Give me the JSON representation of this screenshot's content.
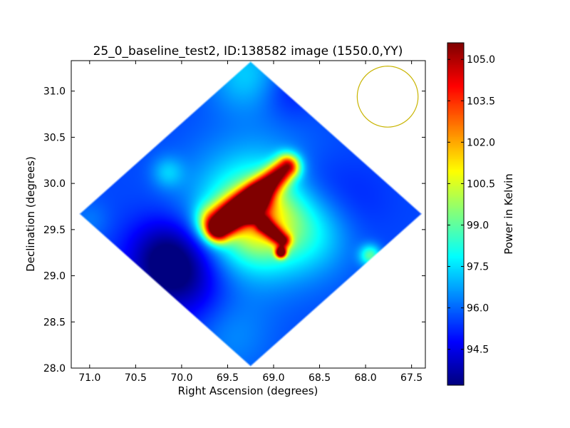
{
  "chart_data": {
    "type": "heatmap",
    "title": "25_0_baseline_test2, ID:138582 image (1550.0,YY)",
    "xlabel": "Right Ascension (degrees)",
    "ylabel": "Declination (degrees)",
    "colorbar_label": "Power in Kelvin",
    "colormap": "jet",
    "x_reversed": true,
    "xlim": [
      71.2,
      67.35
    ],
    "ylim": [
      28.0,
      31.33
    ],
    "xticks": [
      71.0,
      70.5,
      70.0,
      69.5,
      69.0,
      68.5,
      68.0,
      67.5
    ],
    "xtick_labels": [
      "71.0",
      "70.5",
      "70.0",
      "69.5",
      "69.0",
      "68.5",
      "68.0",
      "67.5"
    ],
    "yticks": [
      28.0,
      28.5,
      29.0,
      29.5,
      30.0,
      30.5,
      31.0
    ],
    "ytick_labels": [
      "28.0",
      "28.5",
      "29.0",
      "29.5",
      "30.0",
      "30.5",
      "31.0"
    ],
    "color_range": [
      93.2,
      105.6
    ],
    "colorbar_ticks": [
      94.5,
      96.0,
      97.5,
      99.0,
      100.5,
      102.0,
      103.5,
      105.0
    ],
    "colorbar_tick_labels": [
      "94.5",
      "96.0",
      "97.5",
      "99.0",
      "100.5",
      "102.0",
      "103.5",
      "105.0"
    ],
    "background_level": 95.6,
    "footprint": {
      "shape": "diamond",
      "center": [
        69.25,
        29.67
      ],
      "vertices": [
        [
          69.25,
          31.33
        ],
        [
          67.38,
          29.67
        ],
        [
          69.25,
          28.02
        ],
        [
          71.12,
          29.67
        ]
      ]
    },
    "features": [
      {
        "kind": "ridge",
        "from": [
          69.6,
          29.5
        ],
        "to": [
          68.85,
          30.18
        ],
        "width": 0.09,
        "peak": 104.3
      },
      {
        "kind": "ridge",
        "from": [
          69.65,
          29.6
        ],
        "to": [
          69.2,
          29.8
        ],
        "width": 0.12,
        "peak": 100.8
      },
      {
        "kind": "ridge",
        "from": [
          69.1,
          29.55
        ],
        "to": [
          68.9,
          29.38
        ],
        "width": 0.06,
        "peak": 102.5
      },
      {
        "kind": "spot",
        "center": [
          69.25,
          29.66
        ],
        "sigma": 0.05,
        "peak": 105.3
      },
      {
        "kind": "spot",
        "center": [
          68.92,
          29.25
        ],
        "sigma": 0.04,
        "peak": 105.4
      },
      {
        "kind": "spot",
        "center": [
          69.2,
          29.68
        ],
        "sigma": 0.5,
        "peak": 98.6
      },
      {
        "kind": "spot",
        "center": [
          69.15,
          29.6
        ],
        "sigma": 0.3,
        "peak": 98.9
      },
      {
        "kind": "spot",
        "center": [
          69.3,
          31.18
        ],
        "sigma": 0.28,
        "peak": 97.2
      },
      {
        "kind": "spot",
        "center": [
          70.15,
          30.12
        ],
        "sigma": 0.12,
        "peak": 97.0
      },
      {
        "kind": "spot",
        "center": [
          68.55,
          29.45
        ],
        "sigma": 0.3,
        "peak": 96.8
      },
      {
        "kind": "spot",
        "center": [
          67.95,
          29.22
        ],
        "sigma": 0.08,
        "peak": 98.8
      },
      {
        "kind": "spot",
        "center": [
          69.45,
          28.35
        ],
        "sigma": 0.3,
        "peak": 96.4
      },
      {
        "kind": "spot",
        "center": [
          71.0,
          29.6
        ],
        "sigma": 0.15,
        "peak": 96.2
      },
      {
        "kind": "spot",
        "center": [
          70.15,
          29.2
        ],
        "sigma": 0.3,
        "peak": 93.3
      },
      {
        "kind": "spot",
        "center": [
          69.95,
          28.95
        ],
        "sigma": 0.35,
        "peak": 94.1
      },
      {
        "kind": "spot",
        "center": [
          68.6,
          30.0
        ],
        "sigma": 0.25,
        "peak": 94.9
      },
      {
        "kind": "spot",
        "center": [
          68.85,
          31.0
        ],
        "sigma": 0.2,
        "peak": 94.9
      },
      {
        "kind": "spot",
        "center": [
          68.2,
          29.8
        ],
        "sigma": 0.3,
        "peak": 95.0
      }
    ],
    "beam_circle": {
      "center": [
        67.76,
        30.94
      ],
      "radius": 0.33,
      "color": "#c8b400"
    }
  }
}
